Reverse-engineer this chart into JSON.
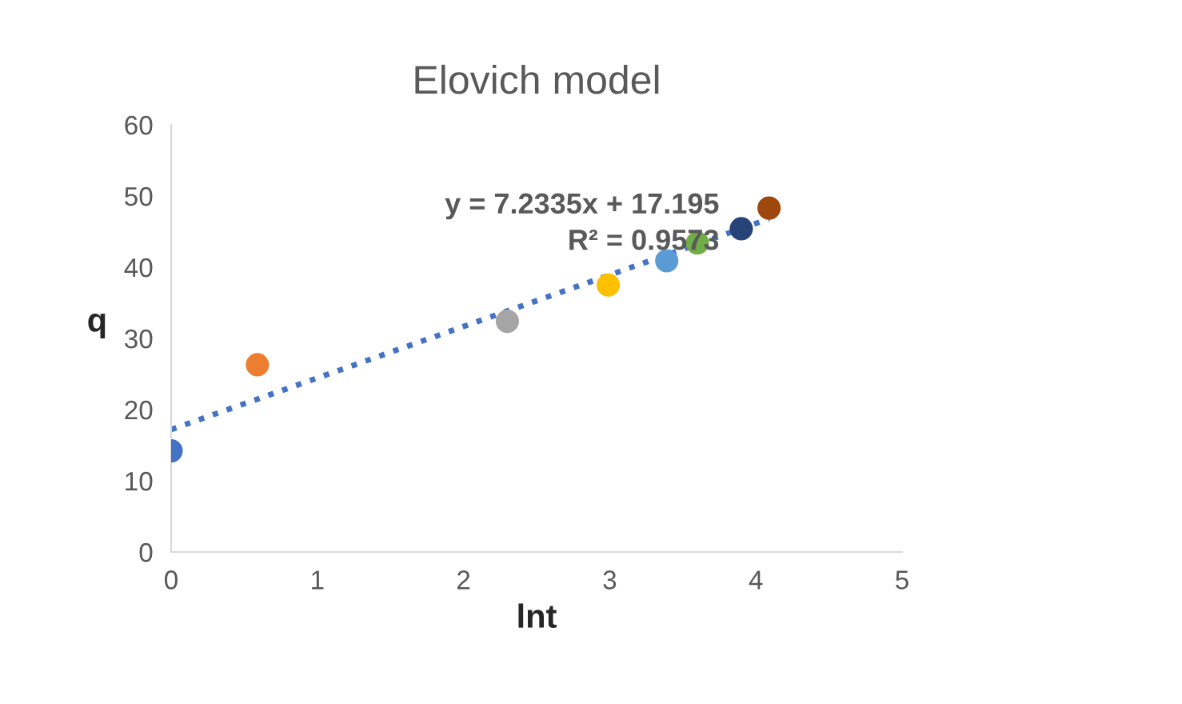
{
  "chart_data": {
    "type": "scatter",
    "title": "Elovich model",
    "xlabel": "lnt",
    "ylabel": "q",
    "xlim": [
      0,
      5
    ],
    "xticks": [
      0,
      1,
      2,
      3,
      4,
      5
    ],
    "ylim": [
      0,
      60
    ],
    "yticks": [
      0,
      10,
      20,
      30,
      40,
      50,
      60
    ],
    "grid": false,
    "legend": false,
    "series": [
      {
        "marker": "circle",
        "x": [
          0,
          0.59,
          2.3,
          2.99,
          3.39,
          3.6,
          3.9,
          4.09
        ],
        "values": [
          14.2,
          26.3,
          32.4,
          37.5,
          40.9,
          43.4,
          45.4,
          48.3
        ],
        "colors": [
          "#4472c4",
          "#ed7d31",
          "#a5a5a5",
          "#ffc000",
          "#5b9bd5",
          "#70ad47",
          "#264478",
          "#9e480e"
        ]
      },
      {
        "type": "line",
        "x": [
          0,
          4.09
        ],
        "values": [
          17.2,
          46.8
        ],
        "color": "#4472c4",
        "line_style": "dotted",
        "marker": "none"
      }
    ],
    "annotations": [
      "y = 7.2335x + 17.195",
      "R² = 0.9573"
    ]
  }
}
